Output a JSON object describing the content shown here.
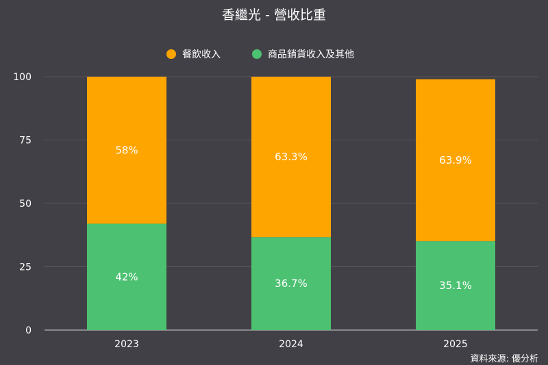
{
  "chart_data": {
    "type": "bar",
    "stacked": true,
    "title": "香繼光 - 營收比重",
    "categories": [
      "2023",
      "2024",
      "2025"
    ],
    "series": [
      {
        "name": "商品銷貨收入及其他",
        "values": [
          42,
          36.7,
          35.1
        ],
        "labels": [
          "42%",
          "36.7%",
          "35.1%"
        ],
        "color": "#4cc171"
      },
      {
        "name": "餐飲收入",
        "values": [
          58,
          63.3,
          63.9
        ],
        "labels": [
          "58%",
          "63.3%",
          "63.9%"
        ],
        "color": "#ffa500"
      }
    ],
    "legend_order": [
      "餐飲收入",
      "商品銷貨收入及其他"
    ],
    "legend_position": "top",
    "ylim": [
      0,
      100
    ],
    "yticks": [
      "0",
      "25",
      "50",
      "75",
      "100"
    ],
    "grid": true,
    "xlabel": "",
    "ylabel": ""
  },
  "source": "資料來源: 優分析",
  "background": "#414046"
}
